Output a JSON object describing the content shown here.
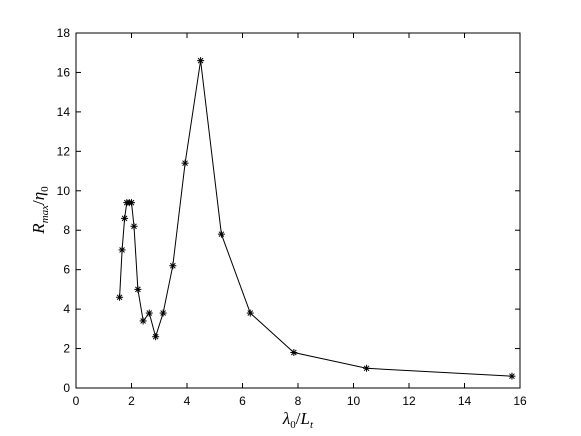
{
  "chart_data": {
    "type": "line",
    "title": "",
    "xlabel": {
      "main": "λ",
      "main_sub": "0",
      "denom": "L",
      "denom_sub": "t"
    },
    "ylabel": {
      "main": "R",
      "main_sub": "max",
      "denom": "η",
      "denom_sub": "0"
    },
    "xlim": [
      0,
      16
    ],
    "ylim": [
      0,
      18
    ],
    "xticks": [
      "0",
      "2",
      "4",
      "6",
      "8",
      "10",
      "12",
      "14",
      "16"
    ],
    "yticks": [
      "0",
      "2",
      "4",
      "6",
      "8",
      "10",
      "12",
      "14",
      "16",
      "18"
    ],
    "grid": false,
    "marker": "asterisk",
    "line_color": "#000000",
    "series": [
      {
        "x": [
          1.57,
          1.66,
          1.75,
          1.83,
          1.92,
          2.0,
          2.09,
          2.23,
          2.42,
          2.64,
          2.87,
          3.14,
          3.49,
          3.93,
          4.49,
          5.24,
          6.28,
          7.85,
          10.47,
          15.71
        ],
        "y": [
          4.6,
          7.0,
          8.6,
          9.4,
          9.4,
          9.4,
          8.2,
          5.0,
          3.4,
          3.8,
          2.6,
          3.8,
          6.2,
          11.4,
          16.6,
          7.8,
          3.8,
          1.8,
          1.0,
          0.6
        ]
      }
    ]
  }
}
